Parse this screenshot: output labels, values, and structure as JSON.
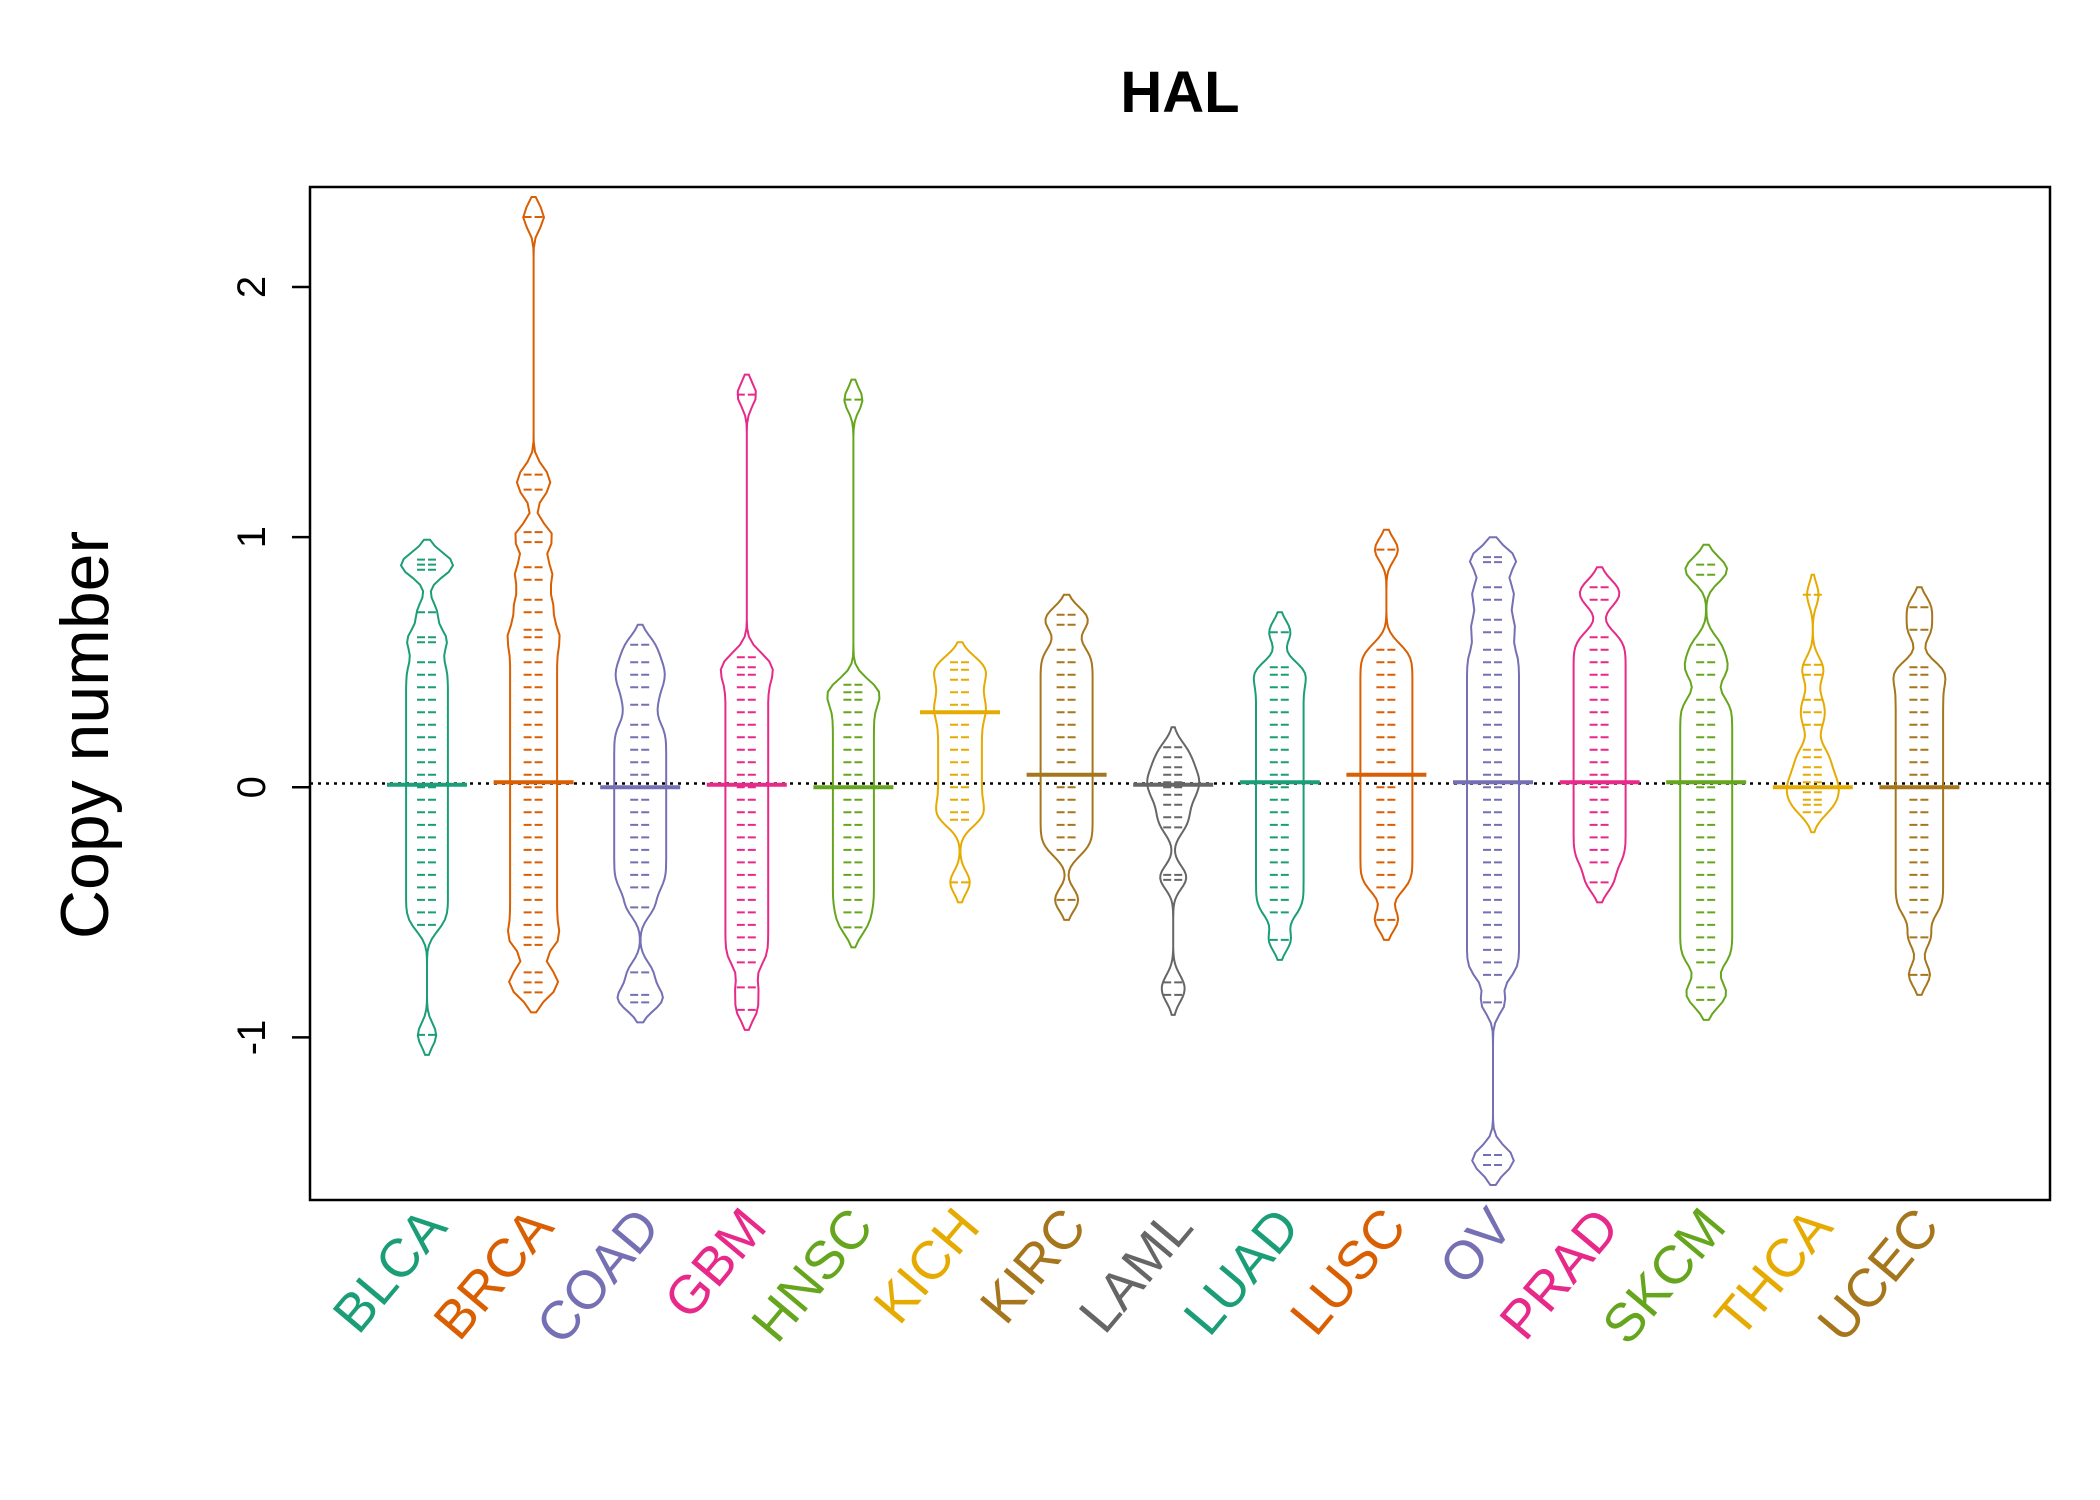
{
  "chart_data": {
    "type": "beanplot",
    "title": "HAL",
    "xlabel": "",
    "ylabel": "Copy number",
    "ylim": [
      -1.65,
      2.4
    ],
    "yticks": [
      -1,
      0,
      1,
      2
    ],
    "reference_line": 0.015,
    "categories": [
      "BLCA",
      "BRCA",
      "COAD",
      "GBM",
      "HNSC",
      "KICH",
      "KIRC",
      "LAML",
      "LUAD",
      "LUSC",
      "OV",
      "PRAD",
      "SKCM",
      "THCA",
      "UCEC"
    ],
    "colors": [
      "#1B9E77",
      "#D95F02",
      "#7570B3",
      "#E7298A",
      "#66A61E",
      "#E6AB02",
      "#A6761D",
      "#666666",
      "#1B9E77",
      "#D95F02",
      "#7570B3",
      "#E7298A",
      "#66A61E",
      "#E6AB02",
      "#A6761D"
    ],
    "series": [
      {
        "name": "BLCA",
        "median": 0.01,
        "points": [
          0.91,
          0.89,
          0.87,
          0.7,
          0.6,
          0.58,
          0.5,
          0.45,
          0.4,
          0.35,
          0.3,
          0.25,
          0.2,
          0.15,
          0.1,
          0.05,
          0.0,
          -0.05,
          -0.1,
          -0.15,
          -0.2,
          -0.25,
          -0.3,
          -0.35,
          -0.4,
          -0.45,
          -0.5,
          -0.55,
          -0.99
        ]
      },
      {
        "name": "BRCA",
        "median": 0.02,
        "points": [
          2.28,
          1.25,
          1.19,
          1.02,
          0.98,
          0.88,
          0.83,
          0.75,
          0.7,
          0.63,
          0.6,
          0.55,
          0.5,
          0.45,
          0.4,
          0.35,
          0.3,
          0.25,
          0.2,
          0.15,
          0.1,
          0.05,
          0.0,
          -0.05,
          -0.1,
          -0.15,
          -0.2,
          -0.25,
          -0.3,
          -0.35,
          -0.4,
          -0.45,
          -0.5,
          -0.55,
          -0.6,
          -0.63,
          -0.74,
          -0.78,
          -0.82
        ]
      },
      {
        "name": "COAD",
        "median": 0.0,
        "points": [
          0.57,
          0.5,
          0.45,
          0.4,
          0.33,
          0.25,
          0.2,
          0.15,
          0.1,
          0.05,
          0.0,
          -0.05,
          -0.1,
          -0.15,
          -0.2,
          -0.25,
          -0.3,
          -0.35,
          -0.4,
          -0.48,
          -0.74,
          -0.83,
          -0.86
        ]
      },
      {
        "name": "GBM",
        "median": 0.01,
        "points": [
          1.57,
          0.52,
          0.48,
          0.45,
          0.4,
          0.35,
          0.3,
          0.25,
          0.2,
          0.15,
          0.1,
          0.05,
          0.0,
          -0.05,
          -0.1,
          -0.15,
          -0.2,
          -0.25,
          -0.3,
          -0.35,
          -0.4,
          -0.45,
          -0.5,
          -0.55,
          -0.6,
          -0.65,
          -0.7,
          -0.8,
          -0.89
        ]
      },
      {
        "name": "HNSC",
        "median": 0.0,
        "points": [
          1.55,
          0.41,
          0.38,
          0.35,
          0.3,
          0.25,
          0.2,
          0.15,
          0.1,
          0.05,
          0.0,
          -0.05,
          -0.1,
          -0.15,
          -0.2,
          -0.25,
          -0.3,
          -0.35,
          -0.4,
          -0.45,
          -0.5,
          -0.56
        ]
      },
      {
        "name": "KICH",
        "median": 0.3,
        "points": [
          0.5,
          0.47,
          0.43,
          0.38,
          0.33,
          0.3,
          0.25,
          0.2,
          0.15,
          0.1,
          0.05,
          0.0,
          -0.05,
          -0.1,
          -0.13,
          -0.38
        ]
      },
      {
        "name": "KIRC",
        "median": 0.05,
        "points": [
          0.69,
          0.65,
          0.55,
          0.5,
          0.45,
          0.4,
          0.35,
          0.3,
          0.25,
          0.2,
          0.15,
          0.1,
          0.05,
          0.0,
          -0.05,
          -0.1,
          -0.15,
          -0.2,
          -0.25,
          -0.45
        ]
      },
      {
        "name": "LAML",
        "median": 0.01,
        "points": [
          0.16,
          0.12,
          0.08,
          0.05,
          0.02,
          0.0,
          -0.03,
          -0.07,
          -0.12,
          -0.16,
          -0.35,
          -0.37,
          -0.78,
          -0.83
        ]
      },
      {
        "name": "LUAD",
        "median": 0.02,
        "points": [
          0.62,
          0.48,
          0.45,
          0.4,
          0.35,
          0.3,
          0.25,
          0.2,
          0.15,
          0.1,
          0.05,
          0.0,
          -0.05,
          -0.1,
          -0.15,
          -0.2,
          -0.25,
          -0.3,
          -0.35,
          -0.4,
          -0.45,
          -0.5,
          -0.61
        ]
      },
      {
        "name": "LUSC",
        "median": 0.05,
        "points": [
          0.95,
          0.55,
          0.5,
          0.45,
          0.4,
          0.35,
          0.3,
          0.25,
          0.2,
          0.15,
          0.1,
          0.05,
          0.0,
          -0.05,
          -0.1,
          -0.15,
          -0.2,
          -0.25,
          -0.3,
          -0.35,
          -0.4,
          -0.53
        ]
      },
      {
        "name": "OV",
        "median": 0.02,
        "points": [
          0.92,
          0.9,
          0.8,
          0.75,
          0.67,
          0.62,
          0.55,
          0.5,
          0.45,
          0.4,
          0.35,
          0.3,
          0.25,
          0.2,
          0.15,
          0.1,
          0.05,
          0.0,
          -0.05,
          -0.1,
          -0.15,
          -0.2,
          -0.25,
          -0.3,
          -0.35,
          -0.4,
          -0.45,
          -0.5,
          -0.55,
          -0.6,
          -0.65,
          -0.7,
          -0.75,
          -0.86,
          -1.47,
          -1.51
        ]
      },
      {
        "name": "PRAD",
        "median": 0.02,
        "points": [
          0.8,
          0.75,
          0.6,
          0.55,
          0.5,
          0.45,
          0.4,
          0.35,
          0.3,
          0.25,
          0.2,
          0.15,
          0.1,
          0.05,
          0.0,
          -0.05,
          -0.1,
          -0.15,
          -0.2,
          -0.25,
          -0.3,
          -0.38
        ]
      },
      {
        "name": "SKCM",
        "median": 0.02,
        "points": [
          0.89,
          0.85,
          0.57,
          0.5,
          0.45,
          0.35,
          0.3,
          0.25,
          0.2,
          0.15,
          0.1,
          0.05,
          0.0,
          -0.05,
          -0.1,
          -0.15,
          -0.2,
          -0.25,
          -0.3,
          -0.35,
          -0.4,
          -0.45,
          -0.5,
          -0.55,
          -0.6,
          -0.65,
          -0.7,
          -0.8,
          -0.85
        ]
      },
      {
        "name": "THCA",
        "median": 0.0,
        "points": [
          0.77,
          0.49,
          0.45,
          0.35,
          0.3,
          0.25,
          0.15,
          0.12,
          0.08,
          0.05,
          0.02,
          0.0,
          -0.02,
          -0.05,
          -0.07,
          -0.1
        ]
      },
      {
        "name": "UCEC",
        "median": 0.0,
        "points": [
          0.72,
          0.63,
          0.48,
          0.45,
          0.4,
          0.35,
          0.3,
          0.25,
          0.2,
          0.15,
          0.1,
          0.05,
          0.0,
          -0.05,
          -0.1,
          -0.15,
          -0.2,
          -0.25,
          -0.3,
          -0.35,
          -0.4,
          -0.45,
          -0.5,
          -0.6,
          -0.75
        ]
      }
    ]
  }
}
